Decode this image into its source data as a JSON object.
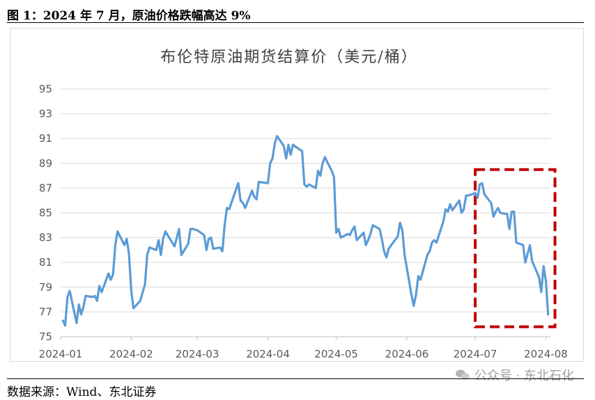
{
  "figure_caption": "图 1：2024 年 7 月，原油价格跌幅高达 9%",
  "source_note": "数据来源：Wind、东北证券",
  "watermark": "公众号 · 东北石化",
  "colors": {
    "line": "#5b9bd5",
    "highlight_box": "#c00000",
    "grid": "#d9d9d9",
    "axis_text": "#595959"
  },
  "chart_data": {
    "type": "line",
    "title": "布伦特原油期货结算价（美元/桶）",
    "ylim": [
      75,
      95
    ],
    "yticks": [
      75,
      77,
      79,
      81,
      83,
      85,
      87,
      89,
      91,
      93,
      95
    ],
    "xlim": [
      "2024-01-01",
      "2024-08-03"
    ],
    "xticks": [
      "2024-01",
      "2024-02",
      "2024-03",
      "2024-04",
      "2024-05",
      "2024-06",
      "2024-07",
      "2024-08"
    ],
    "grid": "horizontal",
    "highlight_box": {
      "x_range": [
        "2024-07-01",
        "2024-08-05"
      ],
      "y_range": [
        75.8,
        88.5
      ]
    },
    "series": [
      {
        "points": [
          [
            "2024-01-02",
            76.3
          ],
          [
            "2024-01-03",
            75.9
          ],
          [
            "2024-01-04",
            78.2
          ],
          [
            "2024-01-05",
            78.7
          ],
          [
            "2024-01-08",
            76.1
          ],
          [
            "2024-01-09",
            77.6
          ],
          [
            "2024-01-10",
            76.8
          ],
          [
            "2024-01-11",
            77.4
          ],
          [
            "2024-01-12",
            78.3
          ],
          [
            "2024-01-15",
            78.2
          ],
          [
            "2024-01-16",
            78.3
          ],
          [
            "2024-01-17",
            77.9
          ],
          [
            "2024-01-18",
            79.1
          ],
          [
            "2024-01-19",
            78.6
          ],
          [
            "2024-01-22",
            80.1
          ],
          [
            "2024-01-23",
            79.6
          ],
          [
            "2024-01-24",
            80.0
          ],
          [
            "2024-01-25",
            82.4
          ],
          [
            "2024-01-26",
            83.5
          ],
          [
            "2024-01-29",
            82.4
          ],
          [
            "2024-01-30",
            82.9
          ],
          [
            "2024-01-31",
            81.7
          ],
          [
            "2024-02-01",
            78.7
          ],
          [
            "2024-02-02",
            77.3
          ],
          [
            "2024-02-05",
            77.9
          ],
          [
            "2024-02-06",
            78.6
          ],
          [
            "2024-02-07",
            79.2
          ],
          [
            "2024-02-08",
            81.6
          ],
          [
            "2024-02-09",
            82.2
          ],
          [
            "2024-02-12",
            82.0
          ],
          [
            "2024-02-13",
            82.8
          ],
          [
            "2024-02-14",
            81.6
          ],
          [
            "2024-02-15",
            82.9
          ],
          [
            "2024-02-16",
            83.5
          ],
          [
            "2024-02-20",
            82.3
          ],
          [
            "2024-02-21",
            83.0
          ],
          [
            "2024-02-22",
            83.7
          ],
          [
            "2024-02-23",
            81.6
          ],
          [
            "2024-02-26",
            82.5
          ],
          [
            "2024-02-27",
            83.7
          ],
          [
            "2024-02-28",
            83.7
          ],
          [
            "2024-03-01",
            83.6
          ],
          [
            "2024-03-04",
            83.2
          ],
          [
            "2024-03-05",
            82.0
          ],
          [
            "2024-03-06",
            82.9
          ],
          [
            "2024-03-07",
            83.0
          ],
          [
            "2024-03-08",
            82.1
          ],
          [
            "2024-03-11",
            82.2
          ],
          [
            "2024-03-12",
            81.9
          ],
          [
            "2024-03-13",
            84.0
          ],
          [
            "2024-03-14",
            85.4
          ],
          [
            "2024-03-15",
            85.3
          ],
          [
            "2024-03-18",
            86.9
          ],
          [
            "2024-03-19",
            87.4
          ],
          [
            "2024-03-20",
            86.0
          ],
          [
            "2024-03-21",
            85.8
          ],
          [
            "2024-03-22",
            85.4
          ],
          [
            "2024-03-25",
            86.8
          ],
          [
            "2024-03-26",
            86.3
          ],
          [
            "2024-03-27",
            86.1
          ],
          [
            "2024-03-28",
            87.5
          ],
          [
            "2024-04-01",
            87.4
          ],
          [
            "2024-04-02",
            89.0
          ],
          [
            "2024-04-03",
            89.4
          ],
          [
            "2024-04-04",
            90.6
          ],
          [
            "2024-04-05",
            91.2
          ],
          [
            "2024-04-08",
            90.4
          ],
          [
            "2024-04-09",
            89.4
          ],
          [
            "2024-04-10",
            90.5
          ],
          [
            "2024-04-11",
            89.7
          ],
          [
            "2024-04-12",
            90.5
          ],
          [
            "2024-04-15",
            90.1
          ],
          [
            "2024-04-16",
            90.0
          ],
          [
            "2024-04-17",
            87.3
          ],
          [
            "2024-04-18",
            87.1
          ],
          [
            "2024-04-19",
            87.3
          ],
          [
            "2024-04-22",
            87.0
          ],
          [
            "2024-04-23",
            88.4
          ],
          [
            "2024-04-24",
            88.0
          ],
          [
            "2024-04-25",
            89.0
          ],
          [
            "2024-04-26",
            89.5
          ],
          [
            "2024-04-29",
            88.4
          ],
          [
            "2024-04-30",
            87.9
          ],
          [
            "2024-05-01",
            83.4
          ],
          [
            "2024-05-02",
            83.7
          ],
          [
            "2024-05-03",
            83.0
          ],
          [
            "2024-05-06",
            83.3
          ],
          [
            "2024-05-07",
            83.2
          ],
          [
            "2024-05-08",
            83.6
          ],
          [
            "2024-05-09",
            83.9
          ],
          [
            "2024-05-10",
            82.8
          ],
          [
            "2024-05-13",
            83.4
          ],
          [
            "2024-05-14",
            82.4
          ],
          [
            "2024-05-15",
            82.8
          ],
          [
            "2024-05-16",
            83.3
          ],
          [
            "2024-05-17",
            84.0
          ],
          [
            "2024-05-20",
            83.7
          ],
          [
            "2024-05-21",
            82.9
          ],
          [
            "2024-05-22",
            81.9
          ],
          [
            "2024-05-23",
            81.4
          ],
          [
            "2024-05-24",
            82.1
          ],
          [
            "2024-05-28",
            83.1
          ],
          [
            "2024-05-29",
            84.2
          ],
          [
            "2024-05-30",
            83.6
          ],
          [
            "2024-05-31",
            81.6
          ],
          [
            "2024-06-03",
            78.4
          ],
          [
            "2024-06-04",
            77.5
          ],
          [
            "2024-06-05",
            78.4
          ],
          [
            "2024-06-06",
            79.9
          ],
          [
            "2024-06-07",
            79.6
          ],
          [
            "2024-06-10",
            81.6
          ],
          [
            "2024-06-11",
            81.9
          ],
          [
            "2024-06-12",
            82.6
          ],
          [
            "2024-06-13",
            82.8
          ],
          [
            "2024-06-14",
            82.6
          ],
          [
            "2024-06-17",
            84.3
          ],
          [
            "2024-06-18",
            85.3
          ],
          [
            "2024-06-19",
            85.1
          ],
          [
            "2024-06-20",
            85.7
          ],
          [
            "2024-06-21",
            85.2
          ],
          [
            "2024-06-24",
            86.0
          ],
          [
            "2024-06-25",
            85.0
          ],
          [
            "2024-06-26",
            85.3
          ],
          [
            "2024-06-27",
            86.4
          ],
          [
            "2024-06-28",
            86.4
          ],
          [
            "2024-07-01",
            86.6
          ],
          [
            "2024-07-02",
            86.2
          ],
          [
            "2024-07-03",
            87.3
          ],
          [
            "2024-07-04",
            87.4
          ],
          [
            "2024-07-05",
            86.5
          ],
          [
            "2024-07-08",
            85.8
          ],
          [
            "2024-07-09",
            84.7
          ],
          [
            "2024-07-10",
            85.1
          ],
          [
            "2024-07-11",
            85.4
          ],
          [
            "2024-07-12",
            85.0
          ],
          [
            "2024-07-15",
            84.9
          ],
          [
            "2024-07-16",
            83.7
          ],
          [
            "2024-07-17",
            85.1
          ],
          [
            "2024-07-18",
            85.1
          ],
          [
            "2024-07-19",
            82.6
          ],
          [
            "2024-07-22",
            82.4
          ],
          [
            "2024-07-23",
            81.0
          ],
          [
            "2024-07-24",
            81.7
          ],
          [
            "2024-07-25",
            82.4
          ],
          [
            "2024-07-26",
            81.1
          ],
          [
            "2024-07-29",
            79.8
          ],
          [
            "2024-07-30",
            78.6
          ],
          [
            "2024-07-31",
            80.7
          ],
          [
            "2024-08-01",
            79.5
          ],
          [
            "2024-08-02",
            76.8
          ]
        ]
      }
    ]
  }
}
